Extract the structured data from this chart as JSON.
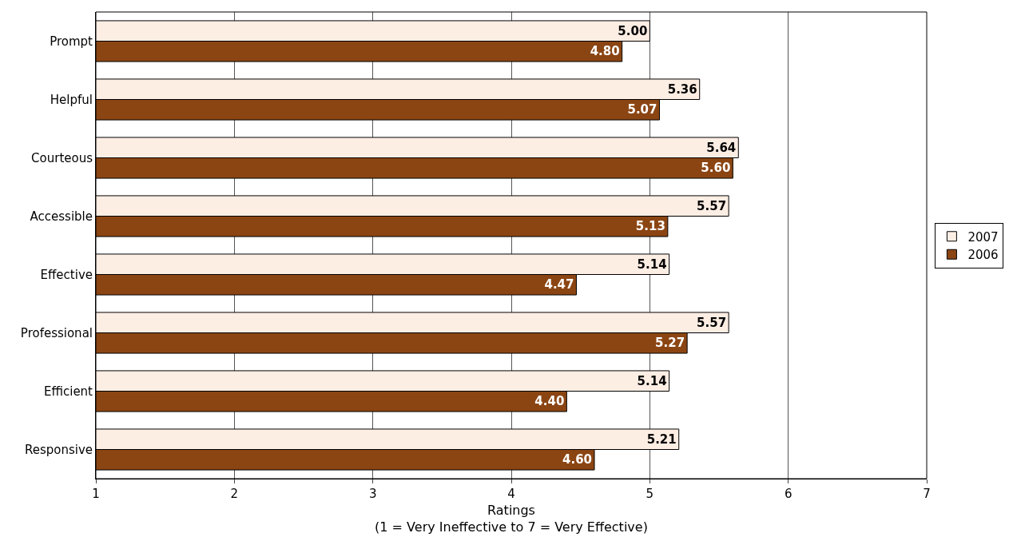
{
  "chart_data": {
    "type": "bar",
    "orientation": "horizontal",
    "categories": [
      "Prompt",
      "Helpful",
      "Courteous",
      "Accessible",
      "Effective",
      "Professional",
      "Efficient",
      "Responsive"
    ],
    "series": [
      {
        "name": "2007",
        "color": "#fdeee4",
        "values": [
          5.0,
          5.36,
          5.64,
          5.57,
          5.14,
          5.57,
          5.14,
          5.21
        ],
        "value_labels": [
          "5.00",
          "5.36",
          "5.64",
          "5.57",
          "5.14",
          "5.57",
          "5.14",
          "5.21"
        ]
      },
      {
        "name": "2006",
        "color": "#8b4513",
        "values": [
          4.8,
          5.07,
          5.6,
          5.13,
          4.47,
          5.27,
          4.4,
          4.6
        ],
        "value_labels": [
          "4.80",
          "5.07",
          "5.60",
          "5.13",
          "4.47",
          "5.27",
          "4.40",
          "4.60"
        ]
      }
    ],
    "xlim": [
      1,
      7
    ],
    "xticks": [
      1,
      2,
      3,
      4,
      5,
      6,
      7
    ],
    "xlabel": "Ratings\n(1 = Very Ineffective to 7 = Very Effective)",
    "grid": "x",
    "legend": "right"
  }
}
